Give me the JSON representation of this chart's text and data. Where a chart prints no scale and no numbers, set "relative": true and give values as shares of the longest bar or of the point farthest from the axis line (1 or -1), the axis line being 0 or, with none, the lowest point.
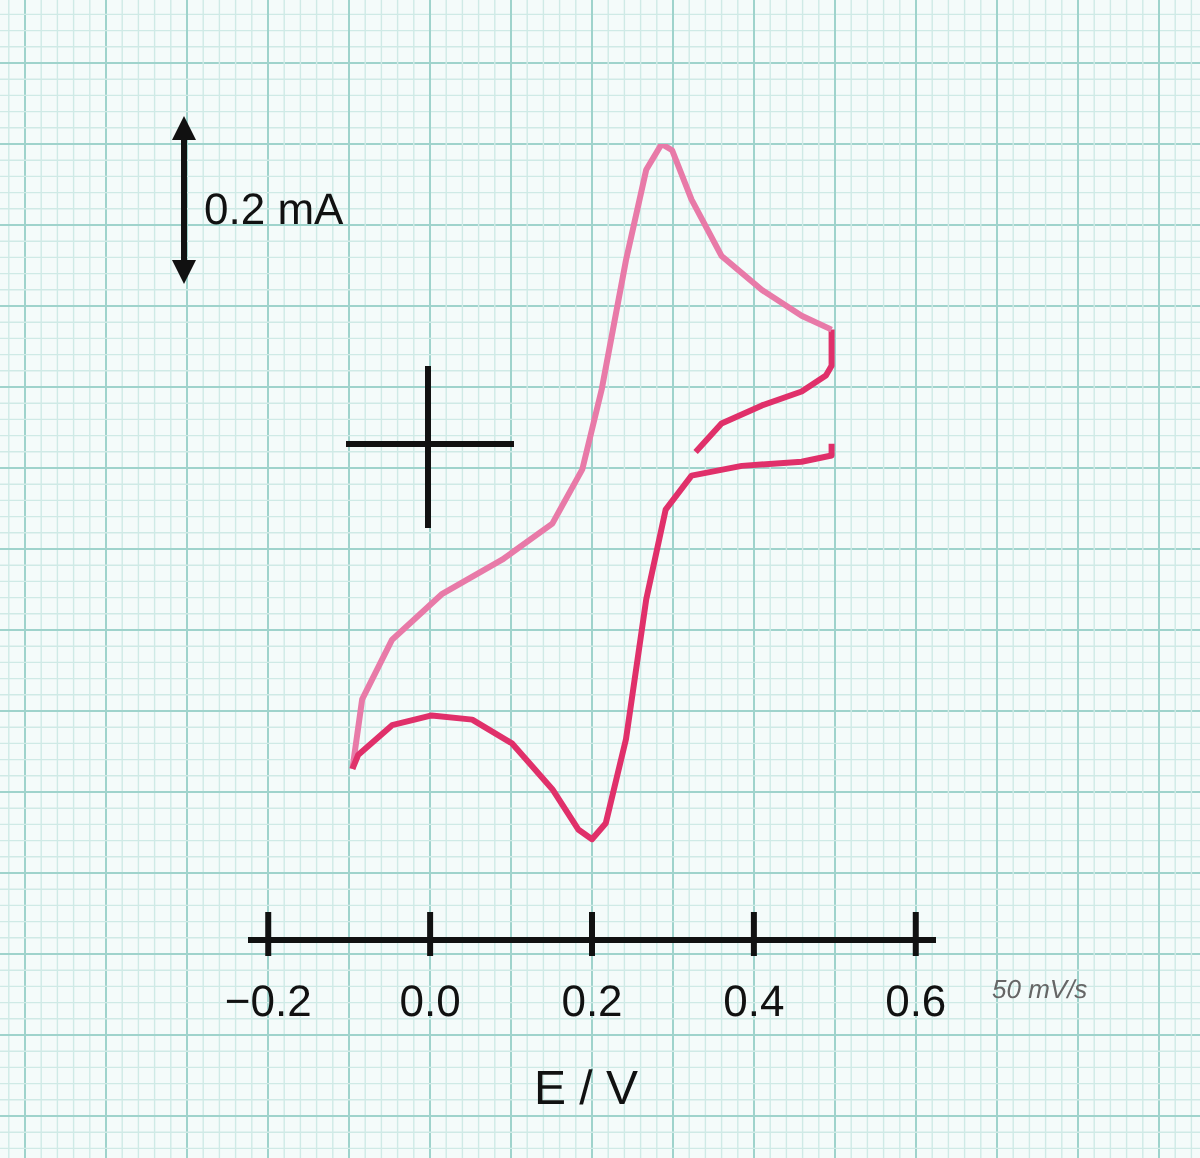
{
  "chart_data": {
    "type": "line",
    "relative": true,
    "xlabel": "E / V",
    "xlim": [
      -0.225,
      0.625
    ],
    "xticks": [
      {
        "value": -0.2,
        "label": "−0.2"
      },
      {
        "value": 0,
        "label": "0.0"
      },
      0.2,
      0.4,
      0.6
    ],
    "tick_labels": "x",
    "marker": "none",
    "grid": true,
    "line_style": "solid",
    "annotations": [
      "0.2 mA",
      "50 mV/s"
    ],
    "series": [
      {
        "color": "#e0306a",
        "x": [
          0.328,
          0.36,
          0.41,
          0.459,
          0.489,
          0.496,
          0.496
        ],
        "values": [
          0.557,
          0.598,
          0.624,
          0.644,
          0.667,
          0.681,
          0.733
        ]
      },
      {
        "color": "#e87aa8",
        "x": [
          0.496,
          0.459,
          0.41,
          0.36,
          0.323,
          0.299,
          0.286,
          0.267,
          0.242,
          0.212,
          0.188,
          0.151,
          0.089,
          0.015,
          -0.047,
          -0.084,
          -0.096
        ],
        "values": [
          0.733,
          0.753,
          0.79,
          0.839,
          0.92,
          0.991,
          1,
          0.963,
          0.833,
          0.647,
          0.532,
          0.454,
          0.402,
          0.353,
          0.287,
          0.201,
          0.101
        ]
      },
      {
        "color": "#e0306a",
        "x": [
          -0.096,
          -0.089,
          -0.047,
          0.002,
          0.052,
          0.101,
          0.151,
          0.183,
          0.2,
          0.217,
          0.242,
          0.267,
          0.291,
          0.323,
          0.385,
          0.459,
          0.496,
          0.496
        ],
        "values": [
          0.101,
          0.121,
          0.164,
          0.178,
          0.172,
          0.138,
          0.072,
          0.014,
          0,
          0.023,
          0.144,
          0.345,
          0.474,
          0.523,
          0.537,
          0.543,
          0.552,
          0.569
        ]
      }
    ]
  }
}
